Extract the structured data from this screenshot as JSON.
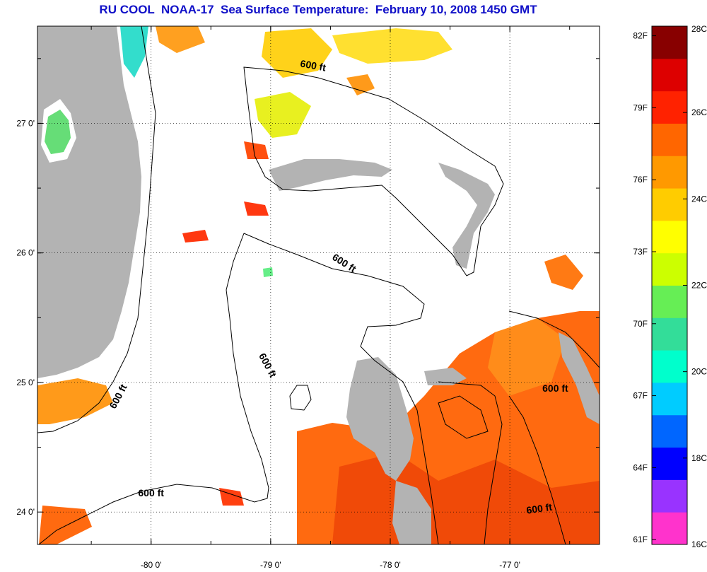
{
  "title": "RU COOL  NOAA-17  Sea Surface Temperature:  February 10, 2008 1450 GMT",
  "map": {
    "lon_range": [
      -80.95,
      -76.25
    ],
    "lat_range": [
      23.75,
      27.75
    ],
    "lat_ticks": [
      {
        "value": 27.0,
        "label": "27 0'"
      },
      {
        "value": 26.0,
        "label": "26 0'"
      },
      {
        "value": 25.0,
        "label": "25 0'"
      },
      {
        "value": 24.0,
        "label": "24 0'"
      }
    ],
    "lon_ticks": [
      {
        "value": -80.0,
        "label": "-80 0'"
      },
      {
        "value": -79.0,
        "label": "-79 0'"
      },
      {
        "value": -78.0,
        "label": "-78 0'"
      },
      {
        "value": -77.0,
        "label": "-77 0'"
      }
    ],
    "grid": "dotted",
    "land_color": "#b3b3b3",
    "ocean_nodata_color": "#ffffff",
    "contour_labels": [
      {
        "text": "600 ft",
        "lon": -78.65,
        "lat": 27.42,
        "rot": 10
      },
      {
        "text": "600 ft",
        "lon": -78.4,
        "lat": 25.9,
        "rot": 32
      },
      {
        "text": "600 ft",
        "lon": -79.05,
        "lat": 25.12,
        "rot": 62
      },
      {
        "text": "600 ft",
        "lon": -80.25,
        "lat": 24.88,
        "rot": -62
      },
      {
        "text": "600 ft",
        "lon": -80.0,
        "lat": 24.12,
        "rot": 0
      },
      {
        "text": "600 ft",
        "lon": -76.75,
        "lat": 24.0,
        "rot": -8
      },
      {
        "text": "600 ft",
        "lon": -76.62,
        "lat": 24.93,
        "rot": 0
      }
    ]
  },
  "colorbar": {
    "fahrenheit_labels": [
      "82F",
      "79F",
      "76F",
      "73F",
      "70F",
      "67F",
      "64F",
      "61F"
    ],
    "celsius_labels": [
      "28C",
      "26C",
      "24C",
      "22C",
      "20C",
      "18C",
      "16C"
    ],
    "celsius_range": [
      16,
      28
    ],
    "colors": [
      "#ff33cc",
      "#9933ff",
      "#0000ff",
      "#0066ff",
      "#00ccff",
      "#00ffcc",
      "#33dd99",
      "#66ee55",
      "#ccff00",
      "#ffff00",
      "#ffcc00",
      "#ff9900",
      "#ff6600",
      "#ff2200",
      "#dd0000",
      "#880000"
    ]
  }
}
